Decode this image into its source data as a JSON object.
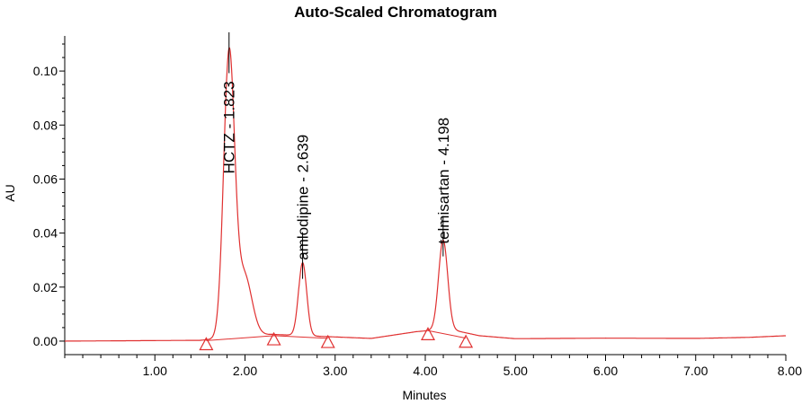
{
  "chart_data": {
    "type": "line",
    "title": "Auto-Scaled Chromatogram",
    "xlabel": "Minutes",
    "ylabel": "AU",
    "xlim": [
      0.0,
      8.0
    ],
    "ylim": [
      -0.005,
      0.113
    ],
    "x_ticks": [
      1.0,
      2.0,
      3.0,
      4.0,
      5.0,
      6.0,
      7.0,
      8.0
    ],
    "x_tick_labels": [
      "1.00",
      "2.00",
      "3.00",
      "4.00",
      "5.00",
      "6.00",
      "7.00",
      "8.00"
    ],
    "x_minor_step": 0.2,
    "y_ticks": [
      0.0,
      0.02,
      0.04,
      0.06,
      0.08,
      0.1
    ],
    "y_tick_labels": [
      "0.00",
      "0.02",
      "0.04",
      "0.06",
      "0.08",
      "0.10"
    ],
    "y_minor_step": 0.005,
    "grid": false,
    "line_color": "#e03030",
    "peak_line_color": "#000000",
    "baseline": [
      [
        0.0,
        0.0
      ],
      [
        1.5,
        0.0003
      ],
      [
        2.3,
        0.0025
      ],
      [
        3.4,
        0.001
      ],
      [
        3.9,
        0.0035
      ],
      [
        4.25,
        0.0045
      ],
      [
        4.6,
        0.002
      ],
      [
        5.0,
        0.0009
      ],
      [
        6.0,
        0.0011
      ],
      [
        7.0,
        0.001
      ],
      [
        7.6,
        0.0014
      ],
      [
        8.0,
        0.002
      ]
    ],
    "peaks": [
      {
        "name": "HCTZ",
        "retention_time": 1.823,
        "label": "HCTZ - 1.823",
        "height": 0.104,
        "start": 1.6,
        "end": 2.3
      },
      {
        "name": "amlodipine",
        "retention_time": 2.639,
        "label": "amlodipine - 2.639",
        "height": 0.027,
        "start": 2.3,
        "end": 2.9
      },
      {
        "name": "telmisartan",
        "retention_time": 4.198,
        "label": "telmisartan - 4.198",
        "height": 0.033,
        "start": 4.02,
        "end": 4.45
      }
    ],
    "integration_markers": [
      {
        "x": 1.57,
        "y": -0.0015
      },
      {
        "x": 2.32,
        "y": 0.0003
      },
      {
        "x": 2.92,
        "y": -0.0007
      },
      {
        "x": 4.03,
        "y": 0.0022
      },
      {
        "x": 4.45,
        "y": -0.0006
      }
    ]
  }
}
